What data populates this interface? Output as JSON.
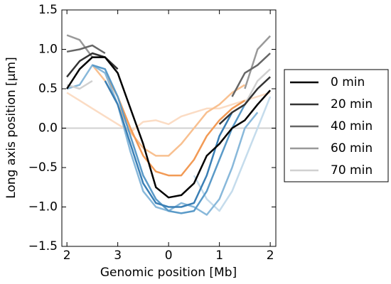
{
  "chart_data": {
    "type": "line",
    "xlabel": "Genomic position [Mb]",
    "ylabel": "Long axis position [µm]",
    "x": [
      2.0,
      2.25,
      2.5,
      2.75,
      3.0,
      3.25,
      3.5,
      3.75,
      4.0,
      4.25,
      4.5,
      4.75,
      5.0,
      5.25,
      5.5,
      5.75,
      6.0
    ],
    "xlim": [
      1.9,
      6.11
    ],
    "xticks": [
      {
        "value": 2,
        "label": "2"
      },
      {
        "value": 3,
        "label": "3"
      },
      {
        "value": 4,
        "label": "0"
      },
      {
        "value": 5,
        "label": "1"
      },
      {
        "value": 6,
        "label": "2"
      }
    ],
    "ylim": [
      -1.5,
      1.5
    ],
    "yticks": [
      {
        "value": -1.5,
        "label": "−1.5"
      },
      {
        "value": -1.0,
        "label": "−1.0"
      },
      {
        "value": -0.5,
        "label": "−0.5"
      },
      {
        "value": 0,
        "label": "0.0"
      },
      {
        "value": 0.5,
        "label": "0.5"
      },
      {
        "value": 1.0,
        "label": "1.0"
      },
      {
        "value": 1.5,
        "label": "1.5"
      }
    ],
    "reference_line": 0,
    "legend": "right",
    "series": [
      {
        "color": "#fbdcc4",
        "values": [
          0.45,
          0.35,
          0.25,
          0.15,
          0.05,
          -0.05,
          0.08,
          0.1,
          0.05,
          0.15,
          0.2,
          0.25,
          0.25,
          0.3,
          0.35,
          0.4,
          0.45
        ]
      },
      {
        "color": "#f8c090",
        "values": [
          null,
          null,
          0.8,
          0.6,
          0.3,
          -0.05,
          -0.25,
          -0.35,
          -0.35,
          -0.2,
          0.0,
          0.2,
          0.3,
          0.45,
          0.55,
          null,
          null
        ]
      },
      {
        "color": "#f29a55",
        "values": [
          null,
          null,
          null,
          0.7,
          0.4,
          0.0,
          -0.35,
          -0.55,
          -0.6,
          -0.6,
          -0.4,
          -0.1,
          0.1,
          0.25,
          0.35,
          null,
          null
        ]
      },
      {
        "color": "#c5dcec",
        "values": [
          null,
          null,
          null,
          null,
          null,
          null,
          null,
          null,
          null,
          null,
          -0.6,
          -0.9,
          -1.05,
          -0.8,
          -0.4,
          0.0,
          0.4
        ]
      },
      {
        "color": "#88b8da",
        "values": [
          0.5,
          0.55,
          0.8,
          0.7,
          0.3,
          -0.3,
          -0.8,
          -1.0,
          -1.05,
          -0.95,
          -1.0,
          -1.1,
          -0.9,
          -0.5,
          0.0,
          0.2,
          null
        ]
      },
      {
        "color": "#5a9ac8",
        "values": [
          null,
          null,
          0.8,
          0.75,
          0.4,
          -0.1,
          -0.6,
          -0.9,
          -1.05,
          -1.08,
          -1.05,
          -0.8,
          -0.4,
          0.0,
          0.3,
          null,
          null
        ]
      },
      {
        "color": "#3a7fb5",
        "values": [
          null,
          null,
          null,
          0.6,
          0.3,
          -0.2,
          -0.7,
          -0.95,
          -1.0,
          -1.0,
          -0.95,
          -0.6,
          -0.1,
          0.2,
          null,
          null,
          null
        ]
      },
      {
        "name": "70 min",
        "color": "#d0d0d0",
        "values": [
          0.55,
          0.5,
          0.6,
          null,
          null,
          null,
          null,
          null,
          null,
          null,
          null,
          null,
          null,
          null,
          0.3,
          0.6,
          0.75
        ]
      },
      {
        "name": "60 min",
        "color": "#999999",
        "values": [
          1.18,
          1.12,
          0.9,
          null,
          null,
          null,
          null,
          null,
          null,
          null,
          null,
          null,
          null,
          null,
          0.5,
          1.0,
          1.17
        ]
      },
      {
        "name": "40 min",
        "color": "#666666",
        "values": [
          0.97,
          1.0,
          1.05,
          0.95,
          null,
          null,
          null,
          null,
          null,
          null,
          null,
          null,
          null,
          0.4,
          0.7,
          0.8,
          0.95
        ]
      },
      {
        "name": "20 min",
        "color": "#333333",
        "values": [
          0.65,
          0.85,
          0.95,
          0.9,
          0.75,
          null,
          null,
          null,
          null,
          null,
          null,
          null,
          0.05,
          0.2,
          0.3,
          0.5,
          0.65
        ]
      },
      {
        "name": "0 min",
        "color": "#000000",
        "values": [
          0.5,
          0.75,
          0.9,
          0.9,
          0.7,
          0.25,
          -0.2,
          -0.75,
          -0.88,
          -0.85,
          -0.7,
          -0.35,
          -0.2,
          0.0,
          0.1,
          0.3,
          0.48
        ]
      }
    ]
  }
}
